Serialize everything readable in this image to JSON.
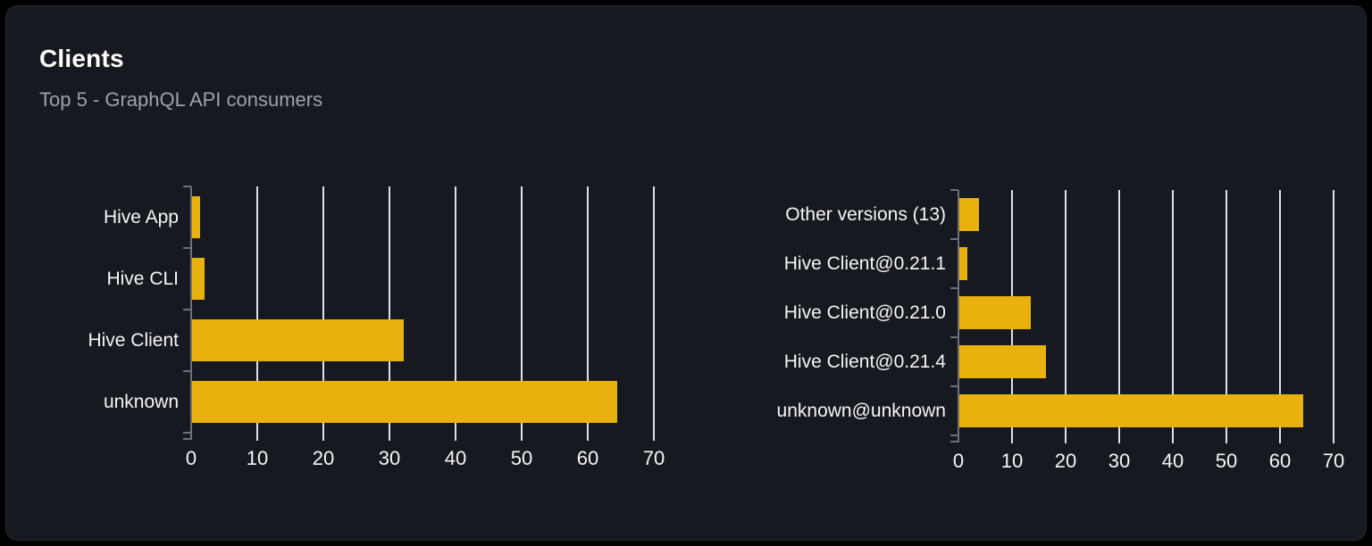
{
  "panel": {
    "title": "Clients",
    "subtitle": "Top 5 - GraphQL API consumers"
  },
  "colors": {
    "bar": "#E9B10D",
    "panel_background": "#16191F",
    "outer_background": "#000000",
    "grid_line": "#DDE1EA",
    "axis_spine": "#6E7179",
    "text": "#F5F6F8",
    "subtitle_text": "#9CA3AB"
  },
  "chart_data": [
    {
      "type": "bar",
      "orientation": "horizontal",
      "title": "",
      "xlabel": "",
      "ylabel": "",
      "xlim": [
        0,
        70
      ],
      "x_ticks": [
        0,
        10,
        20,
        30,
        40,
        50,
        60,
        70
      ],
      "grid": true,
      "legend": false,
      "categories": [
        "Hive App",
        "Hive CLI",
        "Hive Client",
        "unknown"
      ],
      "values": [
        1.3,
        2,
        32.1,
        64.5
      ]
    },
    {
      "type": "bar",
      "orientation": "horizontal",
      "title": "",
      "xlabel": "",
      "ylabel": "",
      "xlim": [
        0,
        70
      ],
      "x_ticks": [
        0,
        10,
        20,
        30,
        40,
        50,
        60,
        70
      ],
      "grid": true,
      "legend": false,
      "categories": [
        "Other versions (13)",
        "Hive Client@0.21.1",
        "Hive Client@0.21.0",
        "Hive Client@0.21.4",
        "unknown@unknown"
      ],
      "values": [
        3.8,
        1.6,
        13.5,
        16.3,
        64.4
      ]
    }
  ]
}
